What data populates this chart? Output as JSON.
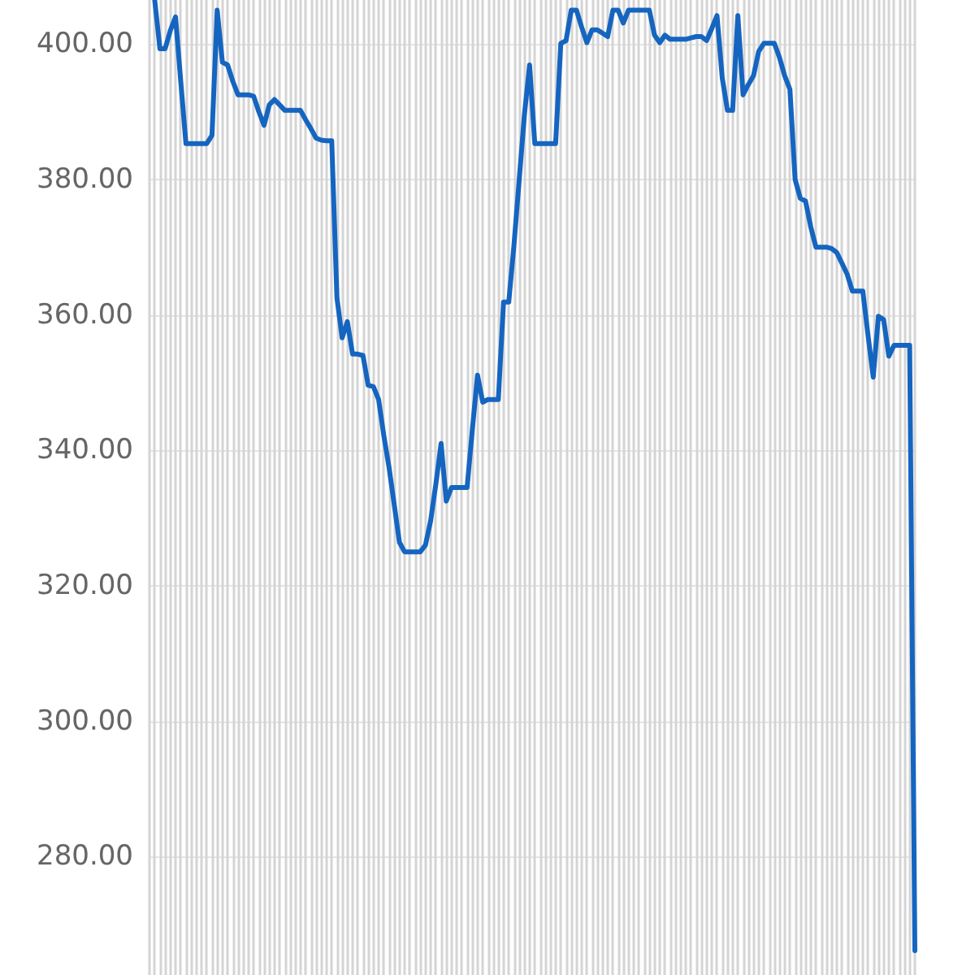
{
  "chart_data": {
    "type": "line",
    "categories": [
      null,
      null,
      null,
      null,
      null,
      null,
      null,
      null,
      null,
      null,
      null,
      null,
      null,
      null,
      null,
      null,
      null,
      null,
      null,
      null,
      null,
      null,
      null,
      null,
      null,
      null,
      null,
      null,
      null,
      null,
      null,
      null,
      null,
      null,
      null,
      null,
      null,
      null,
      null,
      null,
      null,
      null,
      null,
      null,
      null,
      null,
      null,
      null,
      null,
      null,
      null,
      null,
      null,
      null,
      null,
      null,
      null,
      null,
      null,
      null,
      null,
      null,
      null,
      null,
      null,
      null,
      null,
      null,
      null,
      null,
      null,
      null,
      null,
      null,
      null,
      null,
      null,
      null,
      null,
      null,
      null,
      null,
      null,
      null,
      null,
      null,
      null,
      null,
      null,
      null,
      null,
      null,
      null,
      null,
      null,
      null,
      null,
      null,
      null,
      null,
      null,
      null,
      null,
      null,
      null,
      null,
      null,
      null,
      null,
      null,
      null,
      null,
      null,
      null,
      null,
      null,
      null,
      null,
      null,
      null,
      null,
      null,
      null,
      null,
      null,
      null,
      null,
      null,
      null,
      null,
      null,
      null,
      null,
      null,
      null,
      null,
      null,
      null,
      null,
      null,
      null,
      null,
      null,
      null,
      null,
      null,
      null,
      null
    ],
    "values": [
      null,
      406.5,
      399.3,
      399.3,
      402,
      404,
      394.5,
      385.3,
      385.3,
      385.3,
      385.3,
      385.3,
      386.5,
      405,
      397.3,
      396.9,
      394.5,
      392.5,
      392.5,
      392.5,
      392.3,
      390,
      388,
      391,
      391.8,
      391,
      390.2,
      390.2,
      390.2,
      390.2,
      388.8,
      387.5,
      386.1,
      385.8,
      385.7,
      385.7,
      362.5,
      356.6,
      359,
      354.2,
      354.2,
      354,
      349.6,
      349.4,
      347.5,
      342.2,
      337.5,
      332,
      326.4,
      325,
      325,
      325,
      325,
      326,
      329.6,
      335,
      341,
      332.5,
      334.5,
      334.5,
      334.5,
      334.5,
      343,
      351.1,
      347.1,
      347.5,
      347.5,
      347.5,
      361.9,
      361.9,
      370.3,
      379.9,
      389.5,
      396.9,
      385.3,
      385.3,
      385.3,
      385.3,
      385.3,
      400.1,
      400.5,
      405,
      405,
      402.5,
      400.2,
      402.1,
      402.1,
      401.6,
      401.1,
      405,
      405,
      403.1,
      405,
      405,
      405,
      405,
      405,
      401.3,
      400.2,
      401.3,
      400.7,
      400.7,
      400.7,
      400.7,
      400.9,
      401.1,
      401.1,
      400.5,
      402.3,
      404.2,
      395,
      390.2,
      390.2,
      404.2,
      392.5,
      394,
      395.3,
      398.9,
      400.1,
      400.1,
      400.1,
      398,
      395.3,
      393.3,
      380,
      377.2,
      376.8,
      373,
      370,
      370,
      370,
      369.8,
      369.2,
      367.6,
      366,
      363.5,
      363.5,
      363.5,
      357,
      350.8,
      359.8,
      359.3,
      353.9,
      355.5,
      355.5,
      355.5,
      355.5,
      266.1
    ],
    "color": "#1565c0",
    "ylim": [
      262.5,
      406.5
    ],
    "yticks": [
      {
        "value": 280,
        "label": "280.00"
      },
      {
        "value": 300,
        "label": "300.00"
      },
      {
        "value": 320,
        "label": "320.00"
      },
      {
        "value": 340,
        "label": "340.00"
      },
      {
        "value": 360,
        "label": "360.00"
      },
      {
        "value": 380,
        "label": "380.00"
      },
      {
        "value": 400,
        "label": "400.00"
      }
    ],
    "grid": true,
    "tick_labels": "y",
    "marker": "none",
    "line_style": "solid"
  }
}
